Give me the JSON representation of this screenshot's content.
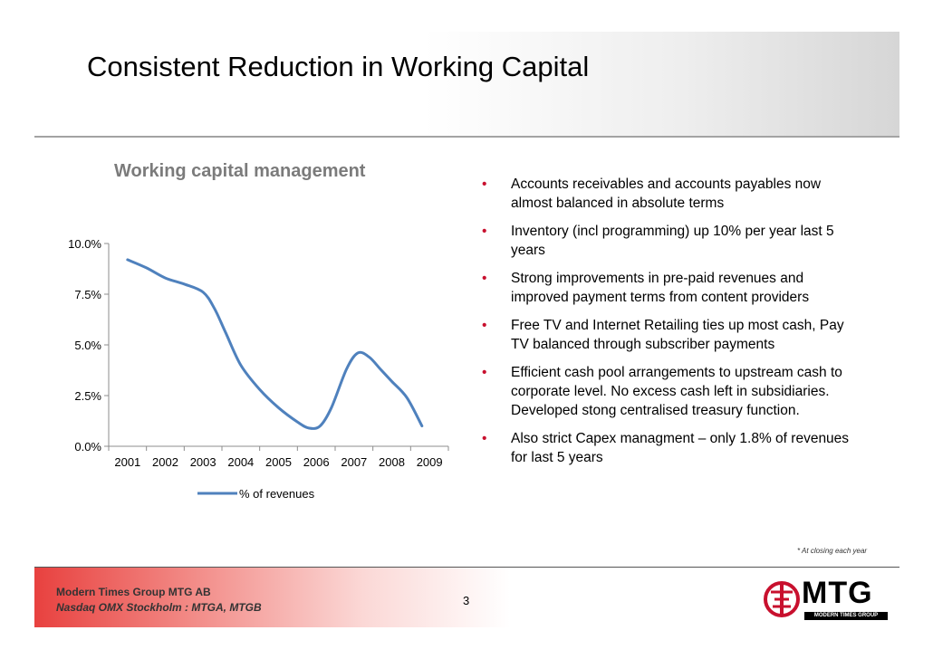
{
  "slide": {
    "title": "Consistent Reduction in Working Capital",
    "page_number": "3",
    "footnote": "* At closing each year",
    "company": "Modern Times Group MTG AB",
    "exchange": "Nasdaq OMX Stockholm : MTGA, MTGB",
    "logo_text": "MTG",
    "logo_subtext": "MODERN TIMES GROUP"
  },
  "chart_title": "Working capital management",
  "bullets": [
    "Accounts receivables and accounts payables now almost balanced in absolute terms",
    "Inventory (incl programming) up 10% per year last 5 years",
    "Strong improvements in pre-paid revenues and improved payment terms from content providers",
    "Free TV and Internet Retailing ties up most cash, Pay TV balanced through subscriber payments",
    "Efficient cash pool arrangements to upstream cash to corporate level. No excess cash left in subsidiaries. Developed stong centralised treasury function.",
    "Also strict Capex managment – only 1.8% of revenues for last 5 years"
  ],
  "colors": {
    "series": "#4f81bd",
    "bullet": "#c8102e",
    "title_text": "#7b7b7b",
    "footer_red": "#e8413f"
  },
  "chart_data": {
    "type": "line",
    "title": "Working capital management",
    "categories": [
      "2001",
      "2002",
      "2003",
      "2004",
      "2005",
      "2006",
      "2007",
      "2008",
      "2009"
    ],
    "y_ticks": [
      "0.0%",
      "2.5%",
      "5.0%",
      "7.5%",
      "10.0%"
    ],
    "ylim": [
      0,
      10
    ],
    "series": [
      {
        "name": "% of revenues",
        "x": [
          2001.0,
          2001.5,
          2002.0,
          2002.5,
          2003.0,
          2003.3,
          2003.6,
          2004.0,
          2004.5,
          2005.0,
          2005.5,
          2005.8,
          2006.1,
          2006.4,
          2006.8,
          2007.1,
          2007.4,
          2007.7,
          2008.0,
          2008.4,
          2008.8
        ],
        "values": [
          9.2,
          8.8,
          8.3,
          8.0,
          7.6,
          6.8,
          5.6,
          4.0,
          2.8,
          1.9,
          1.2,
          0.9,
          1.0,
          1.9,
          3.8,
          4.6,
          4.4,
          3.8,
          3.2,
          2.4,
          1.0
        ]
      }
    ],
    "legend": "bottom",
    "grid": false
  }
}
